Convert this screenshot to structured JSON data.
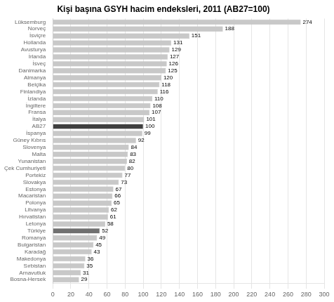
{
  "chart_data": {
    "type": "bar",
    "orientation": "horizontal",
    "title": "Kişi başına GSYH hacim endeksleri, 2011 (AB27=100)",
    "categories": [
      "Bosna-Hersek",
      "Arnavutluk",
      "Sırbistan",
      "Makedonya",
      "Karadağ",
      "Bulgaristan",
      "Romanya",
      "Türkiye",
      "Letonya",
      "Hırvatistan",
      "Litvanya",
      "Polonya",
      "Macaristan",
      "Estonya",
      "Slovakya",
      "Portekiz",
      "Çek Cumhuriyeti",
      "Yunanistan",
      "Malta",
      "Slovenya",
      "Güney Kıbrıs",
      "İspanya",
      "AB27",
      "İtalya",
      "Fransa",
      "İngiltere",
      "İzlanda",
      "Finlandiya",
      "Belçika",
      "Almanya",
      "Danimarka",
      "İsveç",
      "İrlanda",
      "Avusturya",
      "Hollanda",
      "İsviçre",
      "Norveç",
      "Lüksemburg"
    ],
    "values": [
      29,
      31,
      35,
      36,
      43,
      45,
      49,
      52,
      58,
      61,
      62,
      65,
      66,
      67,
      73,
      77,
      80,
      82,
      83,
      84,
      92,
      99,
      100,
      101,
      107,
      108,
      110,
      116,
      118,
      120,
      125,
      126,
      127,
      129,
      131,
      151,
      188,
      274
    ],
    "colors": [
      "#c8c8c8",
      "#c8c8c8",
      "#c8c8c8",
      "#c8c8c8",
      "#c8c8c8",
      "#c8c8c8",
      "#c8c8c8",
      "#707070",
      "#c8c8c8",
      "#c8c8c8",
      "#c8c8c8",
      "#c8c8c8",
      "#c8c8c8",
      "#c8c8c8",
      "#c8c8c8",
      "#c8c8c8",
      "#c8c8c8",
      "#c8c8c8",
      "#c8c8c8",
      "#c8c8c8",
      "#c8c8c8",
      "#c8c8c8",
      "#404040",
      "#c8c8c8",
      "#c8c8c8",
      "#c8c8c8",
      "#c8c8c8",
      "#c8c8c8",
      "#c8c8c8",
      "#c8c8c8",
      "#c8c8c8",
      "#c8c8c8",
      "#c8c8c8",
      "#c8c8c8",
      "#c8c8c8",
      "#c8c8c8",
      "#c8c8c8",
      "#c8c8c8"
    ],
    "xlim": [
      0,
      300
    ],
    "xticks": [
      0,
      20,
      40,
      60,
      80,
      100,
      120,
      140,
      160,
      180,
      200,
      220,
      240,
      260,
      280,
      300
    ],
    "grid": true,
    "data_labels": true
  }
}
